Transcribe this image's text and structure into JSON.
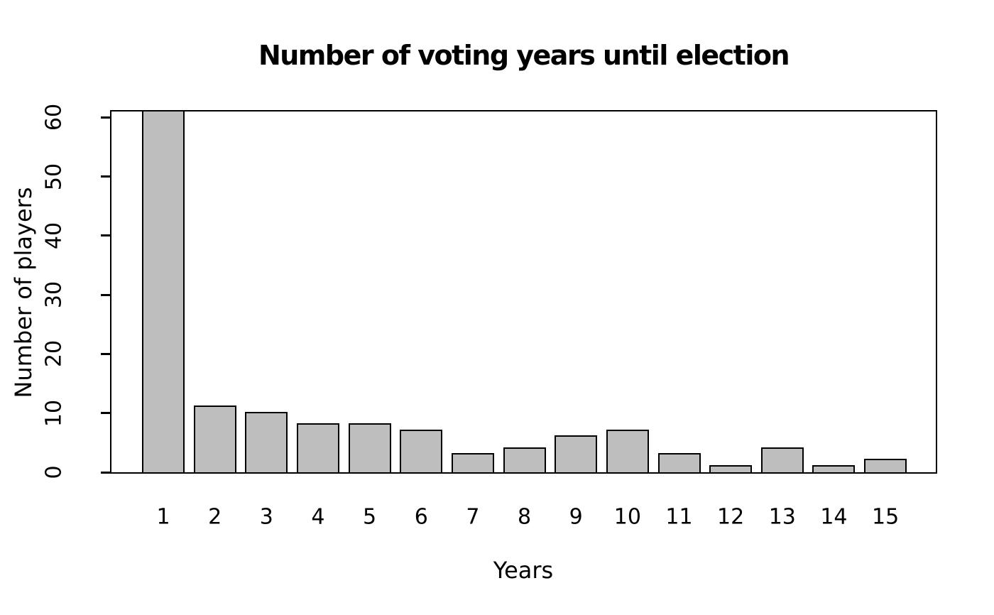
{
  "chart_data": {
    "type": "bar",
    "title": "Number of voting years until election",
    "xlabel": "Years",
    "ylabel": "Number of players",
    "categories": [
      "1",
      "2",
      "3",
      "4",
      "5",
      "6",
      "7",
      "8",
      "9",
      "10",
      "11",
      "12",
      "13",
      "14",
      "15"
    ],
    "values": [
      61,
      11,
      10,
      8,
      8,
      7,
      3,
      4,
      6,
      7,
      3,
      1,
      4,
      1,
      2
    ],
    "ylim": [
      0,
      61
    ],
    "yticks": [
      0,
      10,
      20,
      30,
      40,
      50,
      60
    ],
    "grid": false,
    "legend": null,
    "bar_fill_color": "#bebebe",
    "bar_stroke_color": "#000000",
    "axis_color": "#000000",
    "text_color": "#000000",
    "background_color": "#ffffff"
  }
}
